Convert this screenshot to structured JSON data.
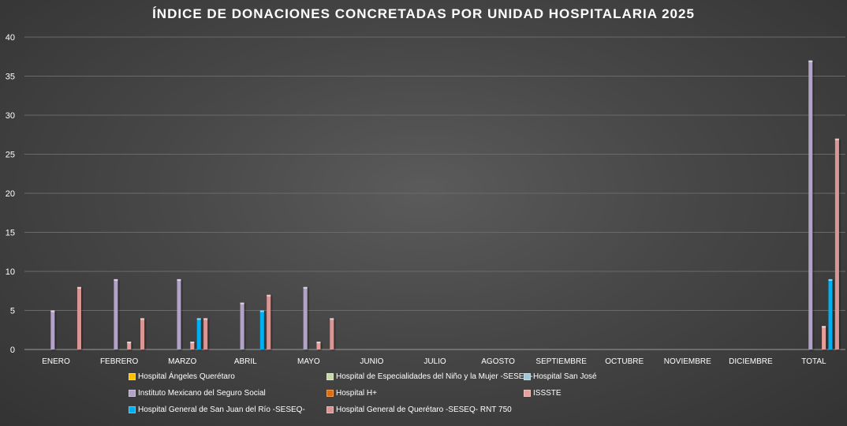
{
  "chart_data": {
    "type": "bar",
    "title": "ÍNDICE DE DONACIONES CONCRETADAS POR UNIDAD HOSPITALARIA 2025",
    "xlabel": "",
    "ylabel": "",
    "ylim": [
      0,
      40
    ],
    "yticks": [
      "0",
      "5",
      "10",
      "15",
      "20",
      "25",
      "30",
      "35",
      "40"
    ],
    "grid": true,
    "legend_position": "bottom",
    "categories": [
      "ENERO",
      "FEBRERO",
      "MARZO",
      "ABRIL",
      "MAYO",
      "JUNIO",
      "JULIO",
      "AGOSTO",
      "SEPTIEMBRE",
      "OCTUBRE",
      "NOVIEMBRE",
      "DICIEMBRE",
      "TOTAL"
    ],
    "series": [
      {
        "name": "Hospital Ángeles Querétaro",
        "color": "#ffc000",
        "values": [
          0,
          0,
          0,
          0,
          0,
          0,
          0,
          0,
          0,
          0,
          0,
          0,
          0
        ]
      },
      {
        "name": "Hospital de Especialidades del Niño y la Mujer -SESEQ-",
        "color": "#c9d8a8",
        "values": [
          0,
          0,
          0,
          0,
          0,
          0,
          0,
          0,
          0,
          0,
          0,
          0,
          0
        ]
      },
      {
        "name": "Hospital San José",
        "color": "#9fc9d6",
        "values": [
          0,
          0,
          0,
          0,
          0,
          0,
          0,
          0,
          0,
          0,
          0,
          0,
          0
        ]
      },
      {
        "name": "Instituto Mexicano del Seguro Social",
        "color": "#b3a2c7",
        "values": [
          5,
          9,
          9,
          6,
          8,
          0,
          0,
          0,
          0,
          0,
          0,
          0,
          37
        ]
      },
      {
        "name": "Hospital H+",
        "color": "#e26b0a",
        "values": [
          0,
          0,
          0,
          0,
          0,
          0,
          0,
          0,
          0,
          0,
          0,
          0,
          0
        ]
      },
      {
        "name": "ISSSTE",
        "color": "#e6a09c",
        "values": [
          0,
          1,
          1,
          0,
          1,
          0,
          0,
          0,
          0,
          0,
          0,
          0,
          3
        ]
      },
      {
        "name": "Hospital General de San Juan del Río -SESEQ-",
        "color": "#00b0f0",
        "values": [
          0,
          0,
          4,
          5,
          0,
          0,
          0,
          0,
          0,
          0,
          0,
          0,
          9
        ]
      },
      {
        "name": "Hospital General de Querétaro -SESEQ- RNT 750",
        "color": "#da9694",
        "values": [
          8,
          4,
          4,
          7,
          4,
          0,
          0,
          0,
          0,
          0,
          0,
          0,
          27
        ]
      }
    ]
  }
}
